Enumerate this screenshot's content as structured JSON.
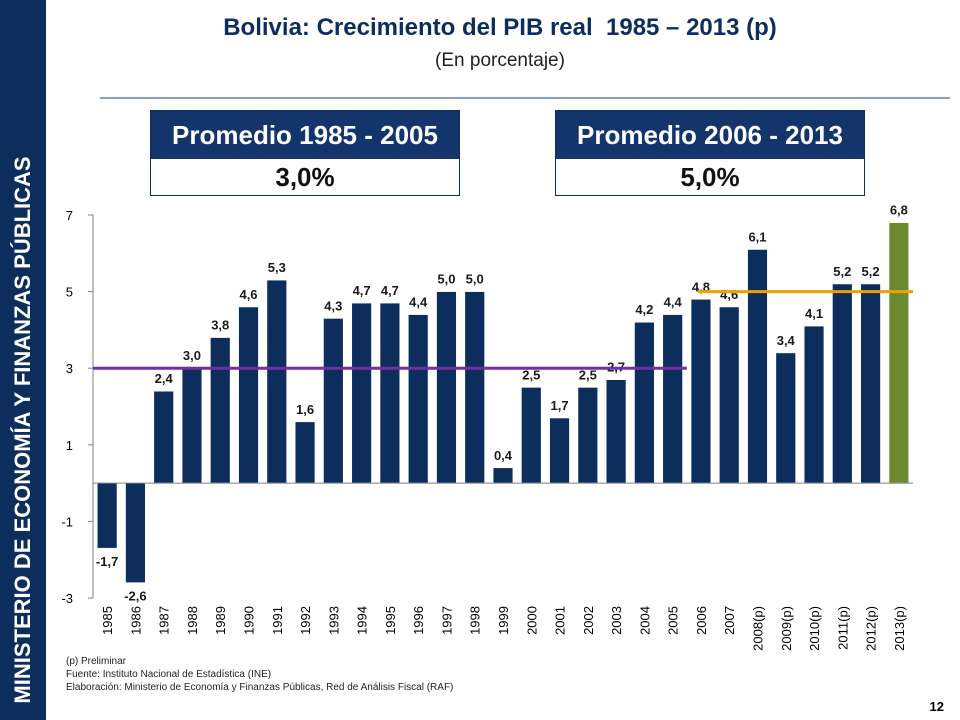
{
  "sidebar": {
    "ministry": "MINISTERIO DE ECONOMÍA Y FINANZAS PÚBLICAS"
  },
  "header": {
    "title": "Bolivia: Crecimiento del PIB real  1985 – 2013 (p)",
    "subtitle": "(En porcentaje)"
  },
  "averages": [
    {
      "label": "Promedio 1985 - 2005",
      "value": "3,0%"
    },
    {
      "label": "Promedio 2006 - 2013",
      "value": "5,0%"
    }
  ],
  "footnotes": {
    "preliminary": "(p) Preliminar",
    "source": "Fuente: Instituto Nacional de Estadística (INE)",
    "prepared": "Elaboración: Ministerio de Economía y Finanzas Públicas, Red de Análisis Fiscal (RAF)"
  },
  "page_number": "12",
  "colors": {
    "bar": "#0d2d5c",
    "bar_highlight": "#6b8a30",
    "avg1_line": "#7030a0",
    "avg2_line": "#f0a000",
    "sidebar": "#0d2d5c"
  },
  "chart_data": {
    "type": "bar",
    "categories": [
      "1985",
      "1986",
      "1987",
      "1988",
      "1989",
      "1990",
      "1991",
      "1992",
      "1993",
      "1994",
      "1995",
      "1996",
      "1997",
      "1998",
      "1999",
      "2000",
      "2001",
      "2002",
      "2003",
      "2004",
      "2005",
      "2006",
      "2007",
      "2008(p)",
      "2009(p)",
      "2010(p)",
      "2011(p)",
      "2012(p)",
      "2013(p)"
    ],
    "values": [
      -1.7,
      -2.6,
      2.4,
      3.0,
      3.8,
      4.6,
      5.3,
      1.6,
      4.3,
      4.7,
      4.7,
      4.4,
      5.0,
      5.0,
      0.4,
      2.5,
      1.7,
      2.5,
      2.7,
      4.2,
      4.4,
      4.8,
      4.6,
      6.1,
      3.4,
      4.1,
      5.2,
      5.2,
      6.8
    ],
    "value_labels": [
      "-1,7",
      "-2,6",
      "2,4",
      "3,0",
      "3,8",
      "4,6",
      "5,3",
      "1,6",
      "4,3",
      "4,7",
      "4,7",
      "4,4",
      "5,0",
      "5,0",
      "0,4",
      "2,5",
      "1,7",
      "2,5",
      "2,7",
      "4,2",
      "4,4",
      "4,8",
      "4,6",
      "6,1",
      "3,4",
      "4,1",
      "5,2",
      "5,2",
      "6,8"
    ],
    "highlight_index": 28,
    "yticks": [
      7,
      5,
      3,
      1,
      -1,
      -3
    ],
    "ylim": [
      -3,
      7
    ],
    "average_lines": [
      {
        "value": 3.0,
        "from": "1985",
        "to": "2005"
      },
      {
        "value": 5.0,
        "from": "2006",
        "to": "2013(p)"
      }
    ],
    "title": "Bolivia: Crecimiento del PIB real  1985 – 2013 (p)",
    "ylabel": "",
    "xlabel": ""
  }
}
